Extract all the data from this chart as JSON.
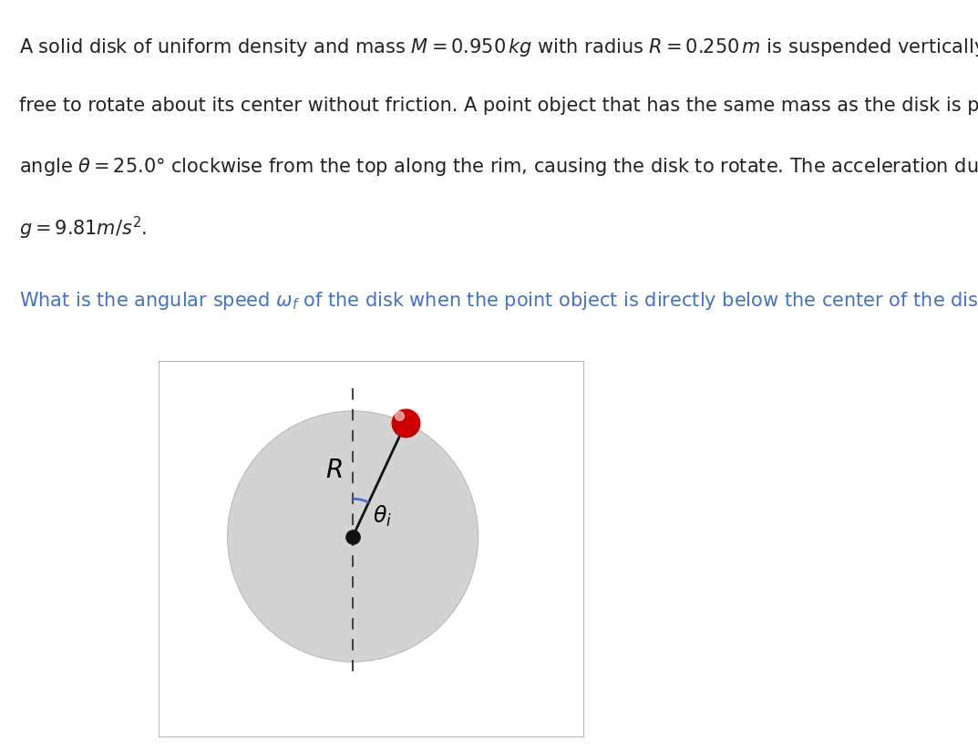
{
  "disk_color": "#d3d3d3",
  "disk_edge_color": "#c0c0c0",
  "box_edge_color": "#aaaaaa",
  "dashed_line_color": "#444444",
  "radius_line_color": "#111111",
  "angle_arc_color": "#4472c4",
  "center_dot_color": "#111111",
  "point_mass_color": "#cc0000",
  "text_color_dark": "#222222",
  "text_color_blue": "#4472c4",
  "theta_deg": 25.0,
  "para_lines": [
    "A solid disk of uniform density and mass $M = 0.950\\,\\mathit{kg}$ with radius $R = 0.250\\,\\mathit{m}$ is suspended vertically and is",
    "free to rotate about its center without friction. A point object that has the same mass as the disk is placed at an",
    "angle $\\theta = 25.0°$ clockwise from the top along the rim, causing the disk to rotate. The acceleration due to gravity is",
    "$g = 9.81m/s^2$."
  ],
  "question_line": "What is the angular speed $\\omega_f$ of the disk when the point object is directly below the center of the disk?"
}
